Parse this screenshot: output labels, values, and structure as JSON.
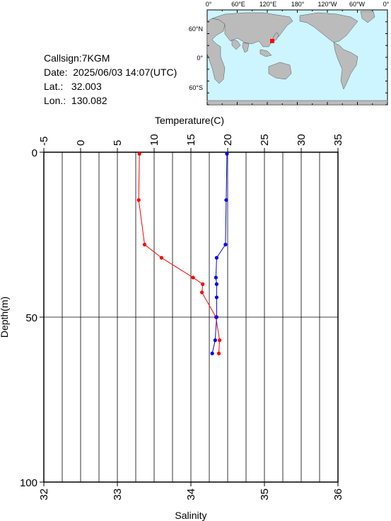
{
  "station": {
    "callsign": "Callsign:7KGM",
    "date": "Date:  2025/06/03 14:07(UTC)",
    "lat": "Lat.:   32.003",
    "lon": "Lon.:  130.082"
  },
  "map": {
    "lon_labels": [
      "0°",
      "60°E",
      "120°E",
      "180°",
      "120°W",
      "60°W",
      "0°"
    ],
    "lat_labels": [
      "60°N",
      "0°",
      "60°S"
    ],
    "marker_color": "#ff0000",
    "ocean_color": "#ccf5ff",
    "land_color": "#bbbbbb"
  },
  "chart_data": {
    "type": "line",
    "title": "",
    "y": {
      "label": "Depth(m)",
      "range": [
        0,
        100
      ],
      "inverted": true,
      "ticks": [
        0,
        50,
        100
      ]
    },
    "x_top": {
      "label": "Temperature(C)",
      "range": [
        -5,
        35
      ],
      "ticks": [
        -5,
        0,
        5,
        10,
        15,
        20,
        25,
        30,
        35
      ]
    },
    "x_bottom": {
      "label": "Salinity",
      "range": [
        32,
        36
      ],
      "ticks": [
        32,
        33,
        34,
        35,
        36
      ]
    },
    "grid": true,
    "series": [
      {
        "name": "",
        "axis": "x_top",
        "color": "#ff0000",
        "points": [
          {
            "x": 8.0,
            "depth": 0.5
          },
          {
            "x": 7.9,
            "depth": 14.5
          },
          {
            "x": 8.7,
            "depth": 28.0
          },
          {
            "x": 11.0,
            "depth": 32.0
          },
          {
            "x": 15.3,
            "depth": 38.0
          },
          {
            "x": 16.6,
            "depth": 40.0
          },
          {
            "x": 16.5,
            "depth": 42.5
          },
          {
            "x": 18.4,
            "depth": 50.0
          },
          {
            "x": 18.9,
            "depth": 57.0
          },
          {
            "x": 18.8,
            "depth": 61.0
          }
        ]
      },
      {
        "name": "",
        "axis": "x_bottom",
        "color": "#0000ff",
        "points": [
          {
            "x": 34.49,
            "depth": 0.5
          },
          {
            "x": 34.48,
            "depth": 14.5
          },
          {
            "x": 34.47,
            "depth": 28.0
          },
          {
            "x": 34.35,
            "depth": 32.0
          },
          {
            "x": 34.34,
            "depth": 38.0
          },
          {
            "x": 34.35,
            "depth": 40.0
          },
          {
            "x": 34.35,
            "depth": 44.0
          },
          {
            "x": 34.35,
            "depth": 50.0
          },
          {
            "x": 34.33,
            "depth": 57.0
          },
          {
            "x": 34.29,
            "depth": 61.0
          }
        ]
      }
    ]
  }
}
